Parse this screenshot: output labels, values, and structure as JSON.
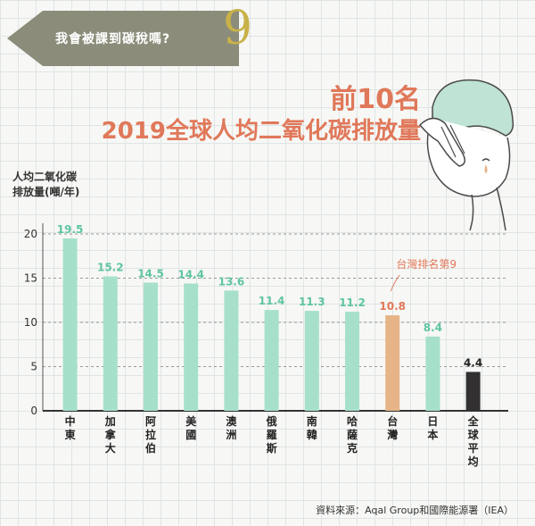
{
  "header": {
    "question": "我會被課到碳稅嗎?",
    "number": "9"
  },
  "title": {
    "line1": "前10名",
    "line2": "2019全球人均二氧化碳排放量"
  },
  "y_unit_label": "人均二氧化碳\n排放量(噸/年)",
  "annotation": "台灣排名第9",
  "source": "資料來源：Aqal Group和國際能源署（IEA）",
  "colors": {
    "bar_default": "#a6e0cb",
    "bar_taiwan": "#e6b487",
    "bar_average": "#333031",
    "value_label_default": "#5fc4a2",
    "value_label_taiwan": "#e0785a",
    "value_label_average": "#222222",
    "title": "#e0785a",
    "banner": "#8b8d7a"
  },
  "chart_data": {
    "type": "bar",
    "categories": [
      "中東",
      "加拿大",
      "阿拉伯",
      "美國",
      "澳洲",
      "俄羅斯",
      "南韓",
      "哈薩克",
      "台灣",
      "日本",
      "全球平均"
    ],
    "values": [
      19.5,
      15.2,
      14.5,
      14.4,
      13.6,
      11.4,
      11.3,
      11.2,
      10.8,
      8.4,
      4.4
    ],
    "value_labels": [
      "19.5",
      "15.2",
      "14.5",
      "14.4",
      "13.6",
      "11.4",
      "11.3",
      "11.2",
      "10.8",
      "8.4",
      "4.4"
    ],
    "ylabel": "人均二氧化碳排放量(噸/年)",
    "ylim": [
      0,
      20
    ],
    "yticks": [
      0,
      5,
      10,
      15,
      20
    ],
    "grid": true,
    "highlight": {
      "台灣": "taiwan",
      "全球平均": "average"
    }
  }
}
